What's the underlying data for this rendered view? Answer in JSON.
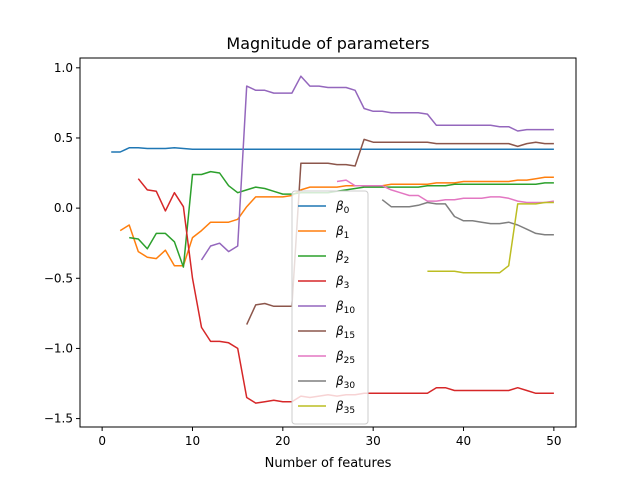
{
  "chart_data": {
    "type": "line",
    "title": "Magnitude of parameters",
    "xlabel": "Number of features",
    "ylabel": "",
    "xlim": [
      -2.45,
      52.45
    ],
    "ylim": [
      -1.56,
      1.07
    ],
    "xticks": [
      0,
      10,
      20,
      30,
      40,
      50
    ],
    "xtick_labels": [
      "0",
      "10",
      "20",
      "30",
      "40",
      "50"
    ],
    "yticks": [
      -1.5,
      -1.0,
      -0.5,
      0.0,
      0.5,
      1.0
    ],
    "ytick_labels": [
      "−1.5",
      "−1.0",
      "−0.5",
      "0.0",
      "0.5",
      "1.0"
    ],
    "legend_position": "center",
    "grid": false,
    "series": [
      {
        "base": "β",
        "sub": "0",
        "color": "#1f77b4",
        "x": [
          1,
          2,
          3,
          4,
          5,
          6,
          7,
          8,
          9,
          10,
          11,
          12,
          13,
          14,
          15,
          16,
          17,
          18,
          19,
          20,
          21,
          22,
          23,
          24,
          25,
          26,
          27,
          28,
          29,
          30,
          31,
          32,
          33,
          34,
          35,
          36,
          37,
          38,
          39,
          40,
          41,
          42,
          43,
          44,
          45,
          46,
          47,
          48,
          49,
          50
        ],
        "y": [
          0.4,
          0.4,
          0.43,
          0.43,
          0.425,
          0.425,
          0.425,
          0.43,
          0.425,
          0.42,
          0.42,
          0.42,
          0.42,
          0.42,
          0.42,
          0.42,
          0.42,
          0.42,
          0.42,
          0.42,
          0.42,
          0.42,
          0.42,
          0.42,
          0.42,
          0.42,
          0.42,
          0.42,
          0.42,
          0.42,
          0.42,
          0.42,
          0.42,
          0.42,
          0.42,
          0.42,
          0.42,
          0.42,
          0.42,
          0.42,
          0.42,
          0.42,
          0.42,
          0.42,
          0.42,
          0.42,
          0.42,
          0.42,
          0.42,
          0.42
        ]
      },
      {
        "base": "β",
        "sub": "1",
        "color": "#ff7f0e",
        "x": [
          2,
          3,
          4,
          5,
          6,
          7,
          8,
          9,
          10,
          11,
          12,
          13,
          14,
          15,
          16,
          17,
          18,
          19,
          20,
          21,
          22,
          23,
          24,
          25,
          26,
          27,
          28,
          29,
          30,
          31,
          32,
          33,
          34,
          35,
          36,
          37,
          38,
          39,
          40,
          41,
          42,
          43,
          44,
          45,
          46,
          47,
          48,
          49,
          50
        ],
        "y": [
          -0.16,
          -0.12,
          -0.31,
          -0.35,
          -0.36,
          -0.3,
          -0.41,
          -0.41,
          -0.21,
          -0.16,
          -0.1,
          -0.1,
          -0.1,
          -0.08,
          0.01,
          0.08,
          0.08,
          0.08,
          0.08,
          0.09,
          0.13,
          0.15,
          0.15,
          0.15,
          0.15,
          0.16,
          0.16,
          0.16,
          0.16,
          0.16,
          0.17,
          0.17,
          0.17,
          0.17,
          0.17,
          0.18,
          0.18,
          0.18,
          0.19,
          0.19,
          0.19,
          0.19,
          0.19,
          0.19,
          0.2,
          0.2,
          0.21,
          0.22,
          0.22
        ]
      },
      {
        "base": "β",
        "sub": "2",
        "color": "#2ca02c",
        "x": [
          3,
          4,
          5,
          6,
          7,
          8,
          9,
          10,
          11,
          12,
          13,
          14,
          15,
          16,
          17,
          18,
          19,
          20,
          21,
          22,
          23,
          24,
          25,
          26,
          27,
          28,
          29,
          30,
          31,
          32,
          33,
          34,
          35,
          36,
          37,
          38,
          39,
          40,
          41,
          42,
          43,
          44,
          45,
          46,
          47,
          48,
          49,
          50
        ],
        "y": [
          -0.21,
          -0.22,
          -0.29,
          -0.18,
          -0.18,
          -0.24,
          -0.42,
          0.24,
          0.24,
          0.26,
          0.25,
          0.16,
          0.11,
          0.13,
          0.15,
          0.14,
          0.12,
          0.1,
          0.1,
          0.11,
          0.11,
          0.11,
          0.11,
          0.12,
          0.13,
          0.14,
          0.15,
          0.15,
          0.15,
          0.15,
          0.15,
          0.15,
          0.15,
          0.16,
          0.16,
          0.16,
          0.17,
          0.17,
          0.17,
          0.17,
          0.17,
          0.17,
          0.17,
          0.17,
          0.17,
          0.17,
          0.18,
          0.18
        ]
      },
      {
        "base": "β",
        "sub": "3",
        "color": "#d62728",
        "x": [
          4,
          5,
          6,
          7,
          8,
          9,
          10,
          11,
          12,
          13,
          14,
          15,
          16,
          17,
          18,
          19,
          20,
          21,
          22,
          23,
          24,
          25,
          26,
          27,
          28,
          29,
          30,
          31,
          32,
          33,
          34,
          35,
          36,
          37,
          38,
          39,
          40,
          41,
          42,
          43,
          44,
          45,
          46,
          47,
          48,
          49,
          50
        ],
        "y": [
          0.21,
          0.13,
          0.12,
          -0.02,
          0.11,
          0.01,
          -0.5,
          -0.85,
          -0.95,
          -0.95,
          -0.96,
          -1.0,
          -1.35,
          -1.39,
          -1.38,
          -1.37,
          -1.38,
          -1.38,
          -1.34,
          -1.35,
          -1.34,
          -1.33,
          -1.34,
          -1.33,
          -1.33,
          -1.32,
          -1.32,
          -1.32,
          -1.32,
          -1.32,
          -1.32,
          -1.32,
          -1.32,
          -1.28,
          -1.28,
          -1.3,
          -1.3,
          -1.3,
          -1.3,
          -1.3,
          -1.3,
          -1.3,
          -1.28,
          -1.3,
          -1.32,
          -1.32,
          -1.32
        ]
      },
      {
        "base": "β",
        "sub": "10",
        "color": "#9467bd",
        "x": [
          11,
          12,
          13,
          14,
          15,
          16,
          17,
          18,
          19,
          20,
          21,
          22,
          23,
          24,
          25,
          26,
          27,
          28,
          29,
          30,
          31,
          32,
          33,
          34,
          35,
          36,
          37,
          38,
          39,
          40,
          41,
          42,
          43,
          44,
          45,
          46,
          47,
          48,
          49,
          50
        ],
        "y": [
          -0.37,
          -0.27,
          -0.25,
          -0.31,
          -0.27,
          0.87,
          0.84,
          0.84,
          0.82,
          0.82,
          0.82,
          0.94,
          0.87,
          0.87,
          0.86,
          0.86,
          0.86,
          0.84,
          0.71,
          0.69,
          0.69,
          0.68,
          0.68,
          0.68,
          0.68,
          0.67,
          0.59,
          0.59,
          0.59,
          0.59,
          0.59,
          0.59,
          0.59,
          0.58,
          0.58,
          0.55,
          0.56,
          0.56,
          0.56,
          0.56
        ]
      },
      {
        "base": "β",
        "sub": "15",
        "color": "#8c564b",
        "x": [
          16,
          17,
          18,
          19,
          20,
          21,
          22,
          23,
          24,
          25,
          26,
          27,
          28,
          29,
          30,
          31,
          32,
          33,
          34,
          35,
          36,
          37,
          38,
          39,
          40,
          41,
          42,
          43,
          44,
          45,
          46,
          47,
          48,
          49,
          50
        ],
        "y": [
          -0.83,
          -0.69,
          -0.68,
          -0.7,
          -0.7,
          -0.7,
          0.32,
          0.32,
          0.32,
          0.32,
          0.31,
          0.31,
          0.3,
          0.49,
          0.47,
          0.47,
          0.47,
          0.47,
          0.47,
          0.47,
          0.47,
          0.46,
          0.46,
          0.46,
          0.46,
          0.46,
          0.46,
          0.46,
          0.46,
          0.46,
          0.44,
          0.46,
          0.47,
          0.46,
          0.46
        ]
      },
      {
        "base": "β",
        "sub": "25",
        "color": "#e377c2",
        "x": [
          26,
          27,
          28,
          29,
          30,
          31,
          32,
          33,
          34,
          35,
          36,
          37,
          38,
          39,
          40,
          41,
          42,
          43,
          44,
          45,
          46,
          47,
          48,
          49,
          50
        ],
        "y": [
          0.19,
          0.2,
          0.16,
          0.16,
          0.16,
          0.16,
          0.13,
          0.11,
          0.09,
          0.09,
          0.05,
          0.05,
          0.06,
          0.06,
          0.07,
          0.07,
          0.07,
          0.08,
          0.08,
          0.07,
          0.05,
          0.04,
          0.04,
          0.04,
          0.05
        ]
      },
      {
        "base": "β",
        "sub": "30",
        "color": "#7f7f7f",
        "x": [
          31,
          32,
          33,
          34,
          35,
          36,
          37,
          38,
          39,
          40,
          41,
          42,
          43,
          44,
          45,
          46,
          47,
          48,
          49,
          50
        ],
        "y": [
          0.06,
          0.01,
          0.01,
          0.01,
          0.02,
          0.04,
          0.03,
          0.03,
          -0.06,
          -0.09,
          -0.09,
          -0.1,
          -0.11,
          -0.11,
          -0.1,
          -0.12,
          -0.15,
          -0.18,
          -0.19,
          -0.19
        ]
      },
      {
        "base": "β",
        "sub": "35",
        "color": "#bcbd22",
        "x": [
          36,
          37,
          38,
          39,
          40,
          41,
          42,
          43,
          44,
          45,
          46,
          47,
          48,
          49,
          50
        ],
        "y": [
          -0.45,
          -0.45,
          -0.45,
          -0.45,
          -0.46,
          -0.46,
          -0.46,
          -0.46,
          -0.46,
          -0.41,
          0.03,
          0.03,
          0.03,
          0.04,
          0.04
        ]
      }
    ]
  }
}
